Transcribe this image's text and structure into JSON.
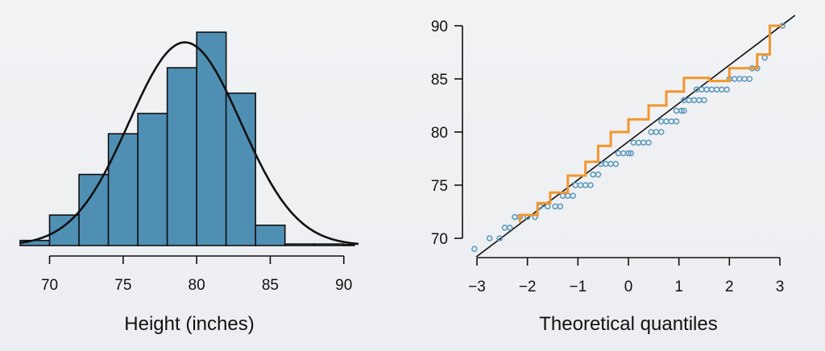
{
  "chart_data": [
    {
      "type": "bar",
      "xlabel": "Height (inches)",
      "ylabel": "",
      "xlim": [
        68,
        91
      ],
      "x_ticks": [
        70,
        75,
        80,
        85,
        90
      ],
      "bins": [
        {
          "from": 68,
          "to": 70,
          "count": 1
        },
        {
          "from": 70,
          "to": 72,
          "count": 6
        },
        {
          "from": 72,
          "to": 74,
          "count": 14
        },
        {
          "from": 74,
          "to": 76,
          "count": 22
        },
        {
          "from": 76,
          "to": 78,
          "count": 26
        },
        {
          "from": 78,
          "to": 80,
          "count": 35
        },
        {
          "from": 80,
          "to": 82,
          "count": 42
        },
        {
          "from": 82,
          "to": 84,
          "count": 30
        },
        {
          "from": 84,
          "to": 86,
          "count": 4
        },
        {
          "from": 86,
          "to": 88,
          "count": 0.3
        },
        {
          "from": 88,
          "to": 90,
          "count": 0.3
        },
        {
          "from": 90,
          "to": 92,
          "count": 0.2
        }
      ],
      "normal_curve": {
        "mean": 79.2,
        "sd": 3.8,
        "peak": 40
      },
      "bar_color": "#4f8fb4"
    },
    {
      "type": "scatter",
      "xlabel": "Theoretical quantiles",
      "ylabel": "",
      "xlim": [
        -3.15,
        3.15
      ],
      "ylim": [
        68.2,
        90.8
      ],
      "x_ticks": [
        -3,
        -2,
        -1,
        0,
        1,
        2,
        3
      ],
      "x_tick_labels": [
        "−3",
        "−2",
        "−1",
        "0",
        "1",
        "2",
        "3"
      ],
      "y_ticks": [
        70,
        75,
        80,
        85,
        90
      ],
      "reference_line": {
        "intercept": 79.1,
        "slope": 3.6
      },
      "observed_points": [
        [
          -3.05,
          69
        ],
        [
          -2.75,
          70
        ],
        [
          -2.55,
          70
        ],
        [
          -2.45,
          71
        ],
        [
          -2.35,
          71
        ],
        [
          -2.25,
          72
        ],
        [
          -2.15,
          72
        ],
        [
          -2.0,
          72
        ],
        [
          -1.85,
          72
        ],
        [
          -1.75,
          73
        ],
        [
          -1.6,
          73
        ],
        [
          -1.45,
          73
        ],
        [
          -1.35,
          73
        ],
        [
          -1.3,
          74
        ],
        [
          -1.2,
          74
        ],
        [
          -1.1,
          74
        ],
        [
          -1.05,
          75
        ],
        [
          -0.95,
          75
        ],
        [
          -0.85,
          75
        ],
        [
          -0.75,
          75
        ],
        [
          -0.7,
          76
        ],
        [
          -0.6,
          76
        ],
        [
          -0.55,
          77
        ],
        [
          -0.45,
          77
        ],
        [
          -0.35,
          77
        ],
        [
          -0.25,
          77
        ],
        [
          -0.2,
          78
        ],
        [
          -0.1,
          78
        ],
        [
          0.0,
          78
        ],
        [
          0.05,
          78
        ],
        [
          0.1,
          79
        ],
        [
          0.2,
          79
        ],
        [
          0.3,
          79
        ],
        [
          0.4,
          79
        ],
        [
          0.45,
          80
        ],
        [
          0.55,
          80
        ],
        [
          0.65,
          80
        ],
        [
          0.65,
          81
        ],
        [
          0.75,
          81
        ],
        [
          0.85,
          81
        ],
        [
          0.95,
          81
        ],
        [
          0.95,
          82
        ],
        [
          1.05,
          82
        ],
        [
          1.1,
          82
        ],
        [
          1.1,
          83
        ],
        [
          1.2,
          83
        ],
        [
          1.3,
          83
        ],
        [
          1.4,
          83
        ],
        [
          1.5,
          83
        ],
        [
          1.35,
          84
        ],
        [
          1.45,
          84
        ],
        [
          1.55,
          84
        ],
        [
          1.65,
          84
        ],
        [
          1.75,
          84
        ],
        [
          1.85,
          84
        ],
        [
          1.95,
          84
        ],
        [
          2.0,
          85
        ],
        [
          2.1,
          85
        ],
        [
          2.2,
          85
        ],
        [
          2.3,
          85
        ],
        [
          2.4,
          85
        ],
        [
          2.45,
          86
        ],
        [
          2.55,
          86
        ],
        [
          2.7,
          87
        ],
        [
          3.05,
          90
        ]
      ],
      "simulated_steps": [
        [
          -2.15,
          71.5
        ],
        [
          -2.15,
          72.2
        ],
        [
          -1.8,
          72.2
        ],
        [
          -1.8,
          73.3
        ],
        [
          -1.55,
          73.3
        ],
        [
          -1.55,
          74.3
        ],
        [
          -1.2,
          74.3
        ],
        [
          -1.2,
          75.9
        ],
        [
          -0.85,
          75.9
        ],
        [
          -0.85,
          77.2
        ],
        [
          -0.6,
          77.2
        ],
        [
          -0.6,
          78.7
        ],
        [
          -0.35,
          78.7
        ],
        [
          -0.35,
          80.0
        ],
        [
          0.0,
          80.0
        ],
        [
          0.0,
          81.2
        ],
        [
          0.4,
          81.2
        ],
        [
          0.4,
          82.5
        ],
        [
          0.75,
          82.5
        ],
        [
          0.75,
          83.8
        ],
        [
          1.1,
          83.8
        ],
        [
          1.1,
          85.1
        ],
        [
          1.6,
          85.1
        ],
        [
          1.6,
          84.8
        ],
        [
          2.0,
          84.8
        ],
        [
          2.0,
          86.0
        ],
        [
          2.55,
          86.0
        ],
        [
          2.55,
          87.3
        ],
        [
          2.8,
          87.3
        ],
        [
          2.8,
          90.0
        ],
        [
          3.05,
          90.0
        ]
      ],
      "point_color": "#5f9bbd",
      "line_color": "#f0962e"
    }
  ]
}
